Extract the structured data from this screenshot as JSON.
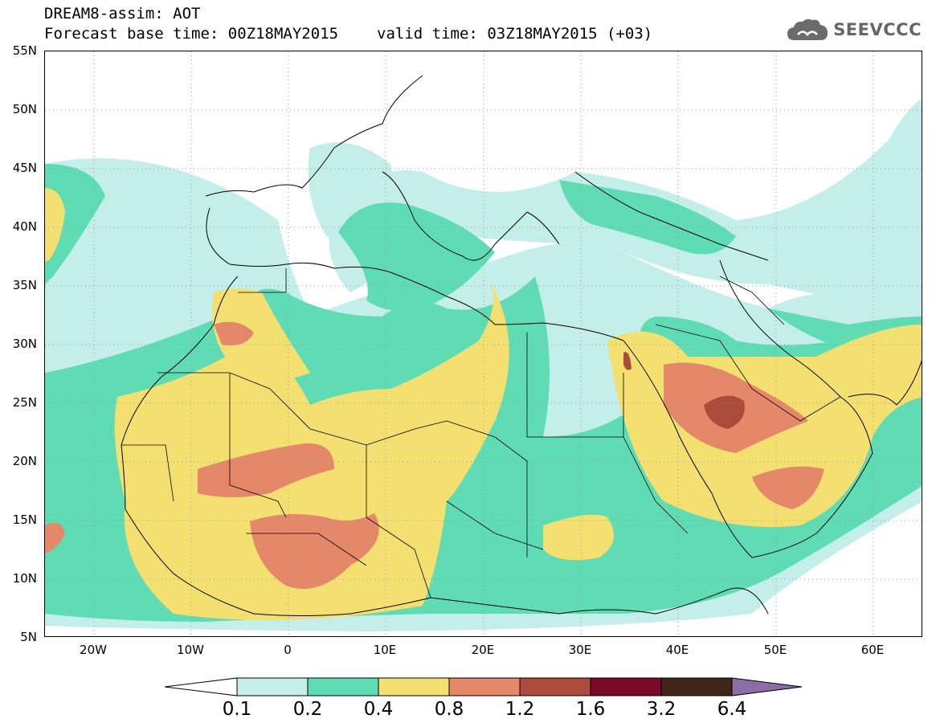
{
  "header": {
    "title": "DREAM8-assim: AOT",
    "base_time": "Forecast base time: 00Z18MAY2015",
    "valid_time": "valid time: 03Z18MAY2015 (+03)"
  },
  "logo": {
    "text": "SEEVCCC",
    "icon": "cloud-icon"
  },
  "map": {
    "lat_labels": [
      "55N",
      "50N",
      "45N",
      "40N",
      "35N",
      "30N",
      "25N",
      "20N",
      "15N",
      "10N",
      "5N"
    ],
    "lon_labels": [
      "20W",
      "10W",
      "0",
      "10E",
      "20E",
      "30E",
      "40E",
      "50E",
      "60E"
    ],
    "colors": {
      "c01": "#c3eeea",
      "c02": "#5fdcb4",
      "c04": "#f4e070",
      "c08": "#e5886a",
      "c12": "#ac4a3c",
      "c16": "#7a0a28",
      "c32": "#402618",
      "c64": "#8b6ea6"
    }
  },
  "colorbar": {
    "labels": [
      "0.1",
      "0.2",
      "0.4",
      "0.8",
      "1.2",
      "1.6",
      "3.2",
      "6.4"
    ],
    "colors": [
      "#c3eeea",
      "#5fdcb4",
      "#f4e070",
      "#e5886a",
      "#ac4a3c",
      "#7a0a28",
      "#402618"
    ],
    "under_color": "#ffffff",
    "over_color": "#8b6ea6"
  }
}
